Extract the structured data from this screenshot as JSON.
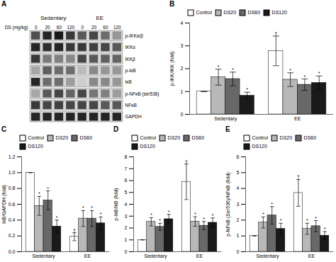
{
  "chart_data": [
    {
      "type": "heatmap",
      "title": "A",
      "xlabel": "DS (mg/kg)",
      "x_groups": [
        "Sedentary",
        "EE"
      ],
      "categories": [
        "0",
        "20",
        "60",
        "120",
        "0",
        "20",
        "60",
        "120"
      ],
      "rows": [
        "p-IKKα/β",
        "IKKα",
        "IKKβ",
        "p-IκB",
        "IκB",
        "p-NFκB (ser536)",
        "NFκB",
        "GAPDH"
      ],
      "cells": [
        [
          0.75,
          0.88,
          0.92,
          0.82,
          0.72,
          0.78,
          0.65,
          0.5
        ],
        [
          0.88,
          0.85,
          0.88,
          0.82,
          0.82,
          0.8,
          0.78,
          0.72
        ],
        [
          0.82,
          0.6,
          0.58,
          0.55,
          0.78,
          0.72,
          0.7,
          0.68
        ],
        [
          0.45,
          0.7,
          0.65,
          0.65,
          0.38,
          0.55,
          0.5,
          0.5
        ],
        [
          0.88,
          0.65,
          0.65,
          0.48,
          0.3,
          0.55,
          0.55,
          0.5
        ],
        [
          0.45,
          0.72,
          0.78,
          0.68,
          0.78,
          0.62,
          0.58,
          0.48
        ],
        [
          0.82,
          0.78,
          0.8,
          0.78,
          0.78,
          0.78,
          0.72,
          0.72
        ],
        [
          0.88,
          0.88,
          0.88,
          0.88,
          0.88,
          0.88,
          0.88,
          0.88
        ]
      ]
    },
    {
      "type": "bar",
      "title": "B",
      "ylabel": "p-IKK/IKK (fold)",
      "categories": [
        "Sedentary",
        "EE"
      ],
      "series": [
        {
          "name": "Control",
          "color": "white",
          "values": [
            1.0,
            2.78
          ],
          "errors": [
            0.0,
            0.65
          ],
          "significance": [
            null,
            "†"
          ]
        },
        {
          "name": "DS20",
          "color": "#b8b8b8",
          "values": [
            1.63,
            1.52
          ],
          "errors": [
            0.35,
            0.3
          ],
          "significance": [
            "*",
            "*"
          ]
        },
        {
          "name": "DS60",
          "color": "#686868",
          "values": [
            1.55,
            1.3
          ],
          "errors": [
            0.3,
            0.25
          ],
          "significance": [
            "*",
            "*"
          ]
        },
        {
          "name": "DS120",
          "color": "#1a1a1a",
          "values": [
            0.82,
            1.38
          ],
          "errors": [
            0.15,
            0.3
          ],
          "significance": [
            "*",
            "*"
          ]
        }
      ],
      "ylim": [
        0,
        4
      ],
      "yticks": [
        0,
        1,
        2,
        3,
        4
      ],
      "legend": "top"
    },
    {
      "type": "bar",
      "title": "C",
      "ylabel": "IkB/GAPDH (fold)",
      "categories": [
        "Sedentary",
        "EE"
      ],
      "series": [
        {
          "name": "Control",
          "color": "white",
          "values": [
            1.0,
            0.19
          ],
          "errors": [
            0.0,
            0.05
          ],
          "significance": [
            null,
            "†"
          ]
        },
        {
          "name": "DS20",
          "color": "#b8b8b8",
          "values": [
            0.58,
            0.42
          ],
          "errors": [
            0.12,
            0.1
          ],
          "significance": [
            "*",
            "*"
          ]
        },
        {
          "name": "DS60",
          "color": "#686868",
          "values": [
            0.65,
            0.42
          ],
          "errors": [
            0.12,
            0.1
          ],
          "significance": [
            "*",
            "*"
          ]
        },
        {
          "name": "DS120",
          "color": "#1a1a1a",
          "values": [
            0.32,
            0.36
          ],
          "errors": [
            0.08,
            0.08
          ],
          "significance": [
            "*",
            "*"
          ]
        }
      ],
      "ylim": [
        0,
        1.2
      ],
      "yticks": [
        {
          "value": 0,
          "label": "0.0"
        },
        0.2,
        0.4,
        0.6,
        0.8,
        {
          "value": 1.0,
          "label": "1.0"
        },
        1.2
      ],
      "legend": "top"
    },
    {
      "type": "bar",
      "title": "D",
      "ylabel": "p-IkB/IkB (fold)",
      "categories": [
        "Sedentary",
        "EE"
      ],
      "series": [
        {
          "name": "Control",
          "color": "white",
          "values": [
            1.0,
            5.9
          ],
          "errors": [
            0.0,
            1.5
          ],
          "significance": [
            null,
            "†"
          ]
        },
        {
          "name": "DS20",
          "color": "#b8b8b8",
          "values": [
            2.52,
            2.55
          ],
          "errors": [
            0.35,
            0.4
          ],
          "significance": [
            "*",
            "*"
          ]
        },
        {
          "name": "DS60",
          "color": "#686868",
          "values": [
            2.1,
            2.2
          ],
          "errors": [
            0.3,
            0.35
          ],
          "significance": [
            "*",
            "*"
          ]
        },
        {
          "name": "DS120",
          "color": "#1a1a1a",
          "values": [
            2.75,
            2.45
          ],
          "errors": [
            0.4,
            0.4
          ],
          "significance": [
            "*",
            "*"
          ]
        }
      ],
      "ylim": [
        0,
        8
      ],
      "yticks": [
        0,
        1,
        2,
        3,
        4,
        5,
        6,
        7,
        8
      ],
      "legend": "top"
    },
    {
      "type": "bar",
      "title": "E",
      "ylabel": "p-NFκB (Ser536)/NFκB (fold)",
      "categories": [
        "Sedentary",
        "EE"
      ],
      "series": [
        {
          "name": "Control",
          "color": "white",
          "values": [
            1.0,
            3.72
          ],
          "errors": [
            0.0,
            0.85
          ],
          "significance": [
            null,
            "†"
          ]
        },
        {
          "name": "DS20",
          "color": "#b8b8b8",
          "values": [
            1.85,
            1.45
          ],
          "errors": [
            0.35,
            0.35
          ],
          "significance": [
            "*",
            "*"
          ]
        },
        {
          "name": "DS60",
          "color": "#686868",
          "values": [
            2.3,
            1.62
          ],
          "errors": [
            0.55,
            0.35
          ],
          "significance": [
            "*",
            "*"
          ]
        },
        {
          "name": "DS120",
          "color": "#1a1a1a",
          "values": [
            1.45,
            1.02
          ],
          "errors": [
            0.35,
            0.25
          ],
          "significance": [
            "*",
            "*"
          ]
        }
      ],
      "ylim": [
        0,
        6
      ],
      "yticks": [
        0,
        1,
        2,
        3,
        4,
        5,
        6
      ],
      "legend": "top"
    }
  ]
}
